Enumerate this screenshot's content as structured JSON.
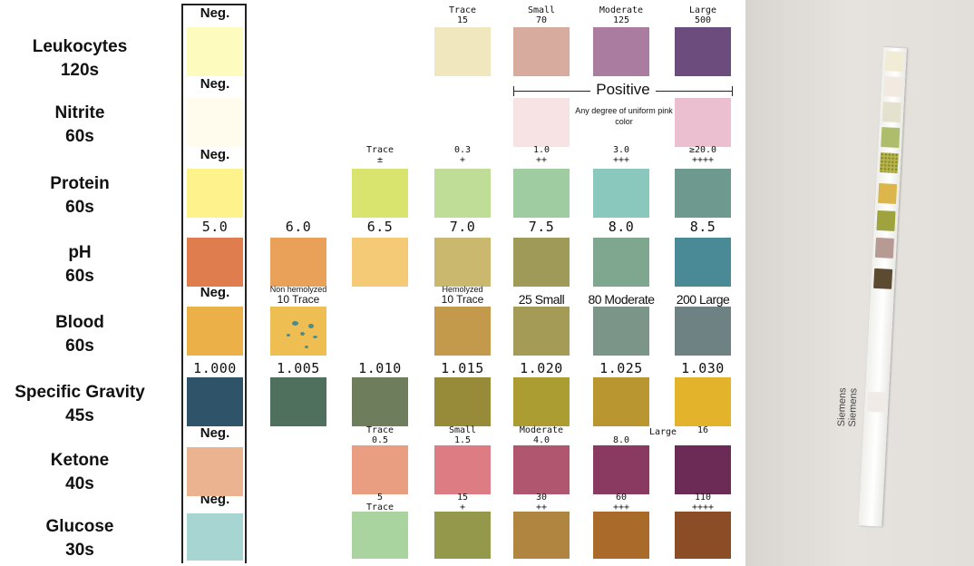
{
  "rows": [
    {
      "name": "Leukocytes",
      "time": "120s"
    },
    {
      "name": "Nitrite",
      "time": "60s"
    },
    {
      "name": "Protein",
      "time": "60s"
    },
    {
      "name": "pH",
      "time": "60s"
    },
    {
      "name": "Blood",
      "time": "60s"
    },
    {
      "name": "Specific Gravity",
      "time": "45s"
    },
    {
      "name": "Ketone",
      "time": "40s"
    },
    {
      "name": "Glucose",
      "time": "30s"
    }
  ],
  "negative_label": "Neg.",
  "leukocytes": {
    "labels": [
      [
        "Trace",
        "15"
      ],
      [
        "Small",
        "70"
      ],
      [
        "Moderate",
        "125"
      ],
      [
        "Large",
        "500"
      ]
    ],
    "colors": [
      "#fefbbf",
      "#f0e7bf",
      "#d7ab9e",
      "#aa7c9f",
      "#6b4c7d"
    ]
  },
  "nitrite": {
    "positive": "Positive",
    "note": "Any degree of uniform pink color",
    "colors": [
      "#fffbed",
      "#f8e3e4",
      "#ebbfd0"
    ]
  },
  "protein": {
    "labels": [
      [
        "Trace",
        "±"
      ],
      [
        "0.3",
        "+"
      ],
      [
        "1.0",
        "++"
      ],
      [
        "3.0",
        "+++"
      ],
      [
        "≥20.0",
        "++++"
      ]
    ],
    "colors": [
      "#fdf28c",
      "#d9e46e",
      "#c0dd97",
      "#9fcca0",
      "#8ac8bd",
      "#6d998e"
    ]
  },
  "ph": {
    "labels": [
      "5.0",
      "6.0",
      "6.5",
      "7.0",
      "7.5",
      "8.0",
      "8.5"
    ],
    "colors": [
      "#df7d4f",
      "#e9a059",
      "#f5ca77",
      "#cab86e",
      "#9f9a58",
      "#7fa68f",
      "#4a8a97"
    ]
  },
  "blood": {
    "labels": [
      "Non hemolyzed",
      "10 Trace",
      "Hemolyzed",
      "10 Trace",
      "25 Small",
      "80 Moderate",
      "200 Large"
    ],
    "colors": [
      "#ebb148",
      "#efbe52",
      "#c39a4b",
      "#a49b56",
      "#7b9589",
      "#6e8283"
    ]
  },
  "sg": {
    "labels": [
      "1.000",
      "1.005",
      "1.010",
      "1.015",
      "1.020",
      "1.025",
      "1.030"
    ],
    "colors": [
      "#2f546a",
      "#4f705c",
      "#6e7d5b",
      "#978b39",
      "#ab9d31",
      "#b9962f",
      "#e3b42b"
    ]
  },
  "ketone": {
    "labels": [
      [
        "Trace",
        "0.5"
      ],
      [
        "Small",
        "1.5"
      ],
      [
        "Moderate",
        "4.0"
      ],
      [
        "Large",
        "8.0"
      ],
      [
        "",
        "16"
      ]
    ],
    "colors": [
      "#ecb390",
      "#e99e82",
      "#de7c84",
      "#b0566e",
      "#8a3a60",
      "#6c2a57"
    ]
  },
  "glucose": {
    "labels": [
      [
        "5",
        "Trace"
      ],
      [
        "15",
        "+"
      ],
      [
        "30",
        "++"
      ],
      [
        "60",
        "+++"
      ],
      [
        "110",
        "++++"
      ]
    ],
    "colors": [
      "#a7d6d2",
      "#a9d39f",
      "#93984b",
      "#b0853f",
      "#a96a2a",
      "#8a4d26"
    ]
  },
  "photo": {
    "brand": "Siemens",
    "pad_colors": [
      "#f1ecd6",
      "#f2e9e0",
      "#e5e1cf",
      "#aebd6c",
      "#b7b54c",
      "#dcb64a",
      "#9ea33d",
      "#b79a93",
      "#5d4b31",
      "#f0ebe6"
    ]
  }
}
